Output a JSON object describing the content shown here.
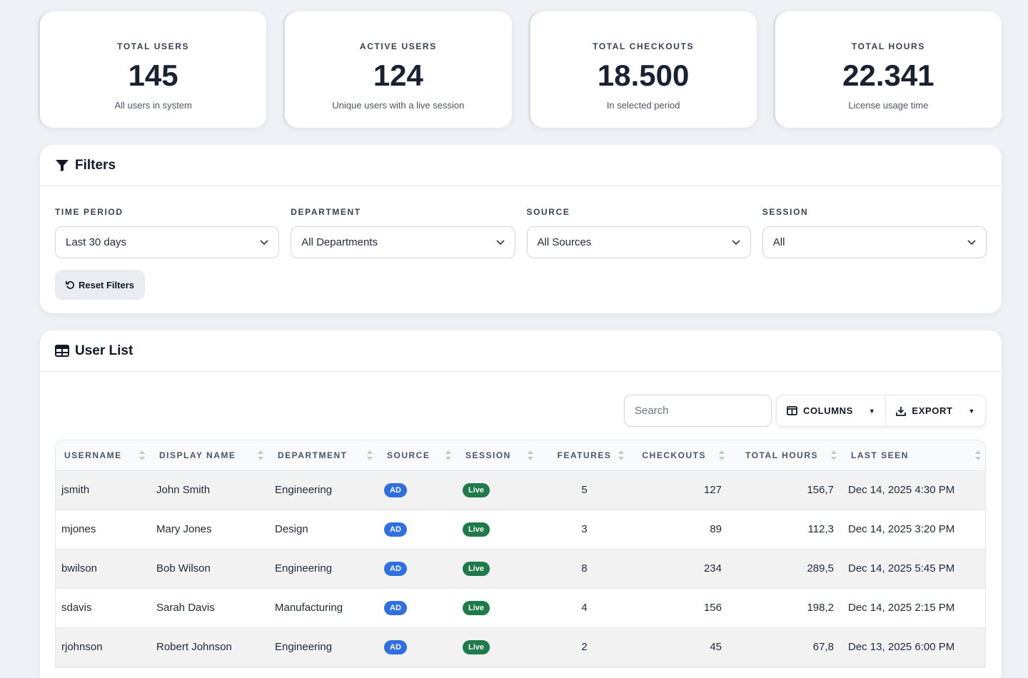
{
  "stats": [
    {
      "label": "TOTAL USERS",
      "value": "145",
      "sub": "All users in system"
    },
    {
      "label": "ACTIVE USERS",
      "value": "124",
      "sub": "Unique users with a live session"
    },
    {
      "label": "TOTAL CHECKOUTS",
      "value": "18.500",
      "sub": "In selected period"
    },
    {
      "label": "TOTAL HOURS",
      "value": "22.341",
      "sub": "License usage time"
    }
  ],
  "filters": {
    "title": "Filters",
    "fields": [
      {
        "label": "TIME PERIOD",
        "value": "Last 30 days"
      },
      {
        "label": "DEPARTMENT",
        "value": "All Departments"
      },
      {
        "label": "SOURCE",
        "value": "All Sources"
      },
      {
        "label": "SESSION",
        "value": "All"
      }
    ],
    "reset_label": "Reset Filters"
  },
  "userlist": {
    "title": "User List",
    "search_placeholder": "Search",
    "columns_label": "COLUMNS",
    "export_label": "EXPORT",
    "headers": [
      "USERNAME",
      "DISPLAY NAME",
      "DEPARTMENT",
      "SOURCE",
      "SESSION",
      "FEATURES",
      "CHECKOUTS",
      "TOTAL HOURS",
      "LAST SEEN"
    ],
    "rows": [
      {
        "username": "jsmith",
        "display": "John Smith",
        "dept": "Engineering",
        "source": "AD",
        "session": "Live",
        "features": "5",
        "checkouts": "127",
        "hours": "156,7",
        "last_seen": "Dec 14, 2025 4:30 PM"
      },
      {
        "username": "mjones",
        "display": "Mary Jones",
        "dept": "Design",
        "source": "AD",
        "session": "Live",
        "features": "3",
        "checkouts": "89",
        "hours": "112,3",
        "last_seen": "Dec 14, 2025 3:20 PM"
      },
      {
        "username": "bwilson",
        "display": "Bob Wilson",
        "dept": "Engineering",
        "source": "AD",
        "session": "Live",
        "features": "8",
        "checkouts": "234",
        "hours": "289,5",
        "last_seen": "Dec 14, 2025 5:45 PM"
      },
      {
        "username": "sdavis",
        "display": "Sarah Davis",
        "dept": "Manufacturing",
        "source": "AD",
        "session": "Live",
        "features": "4",
        "checkouts": "156",
        "hours": "198,2",
        "last_seen": "Dec 14, 2025 2:15 PM"
      },
      {
        "username": "rjohnson",
        "display": "Robert Johnson",
        "dept": "Engineering",
        "source": "AD",
        "session": "Live",
        "features": "2",
        "checkouts": "45",
        "hours": "67,8",
        "last_seen": "Dec 13, 2025 6:00 PM"
      }
    ]
  },
  "colors": {
    "ad_badge": "#2f6fe0",
    "live_badge": "#1f7a4a"
  }
}
